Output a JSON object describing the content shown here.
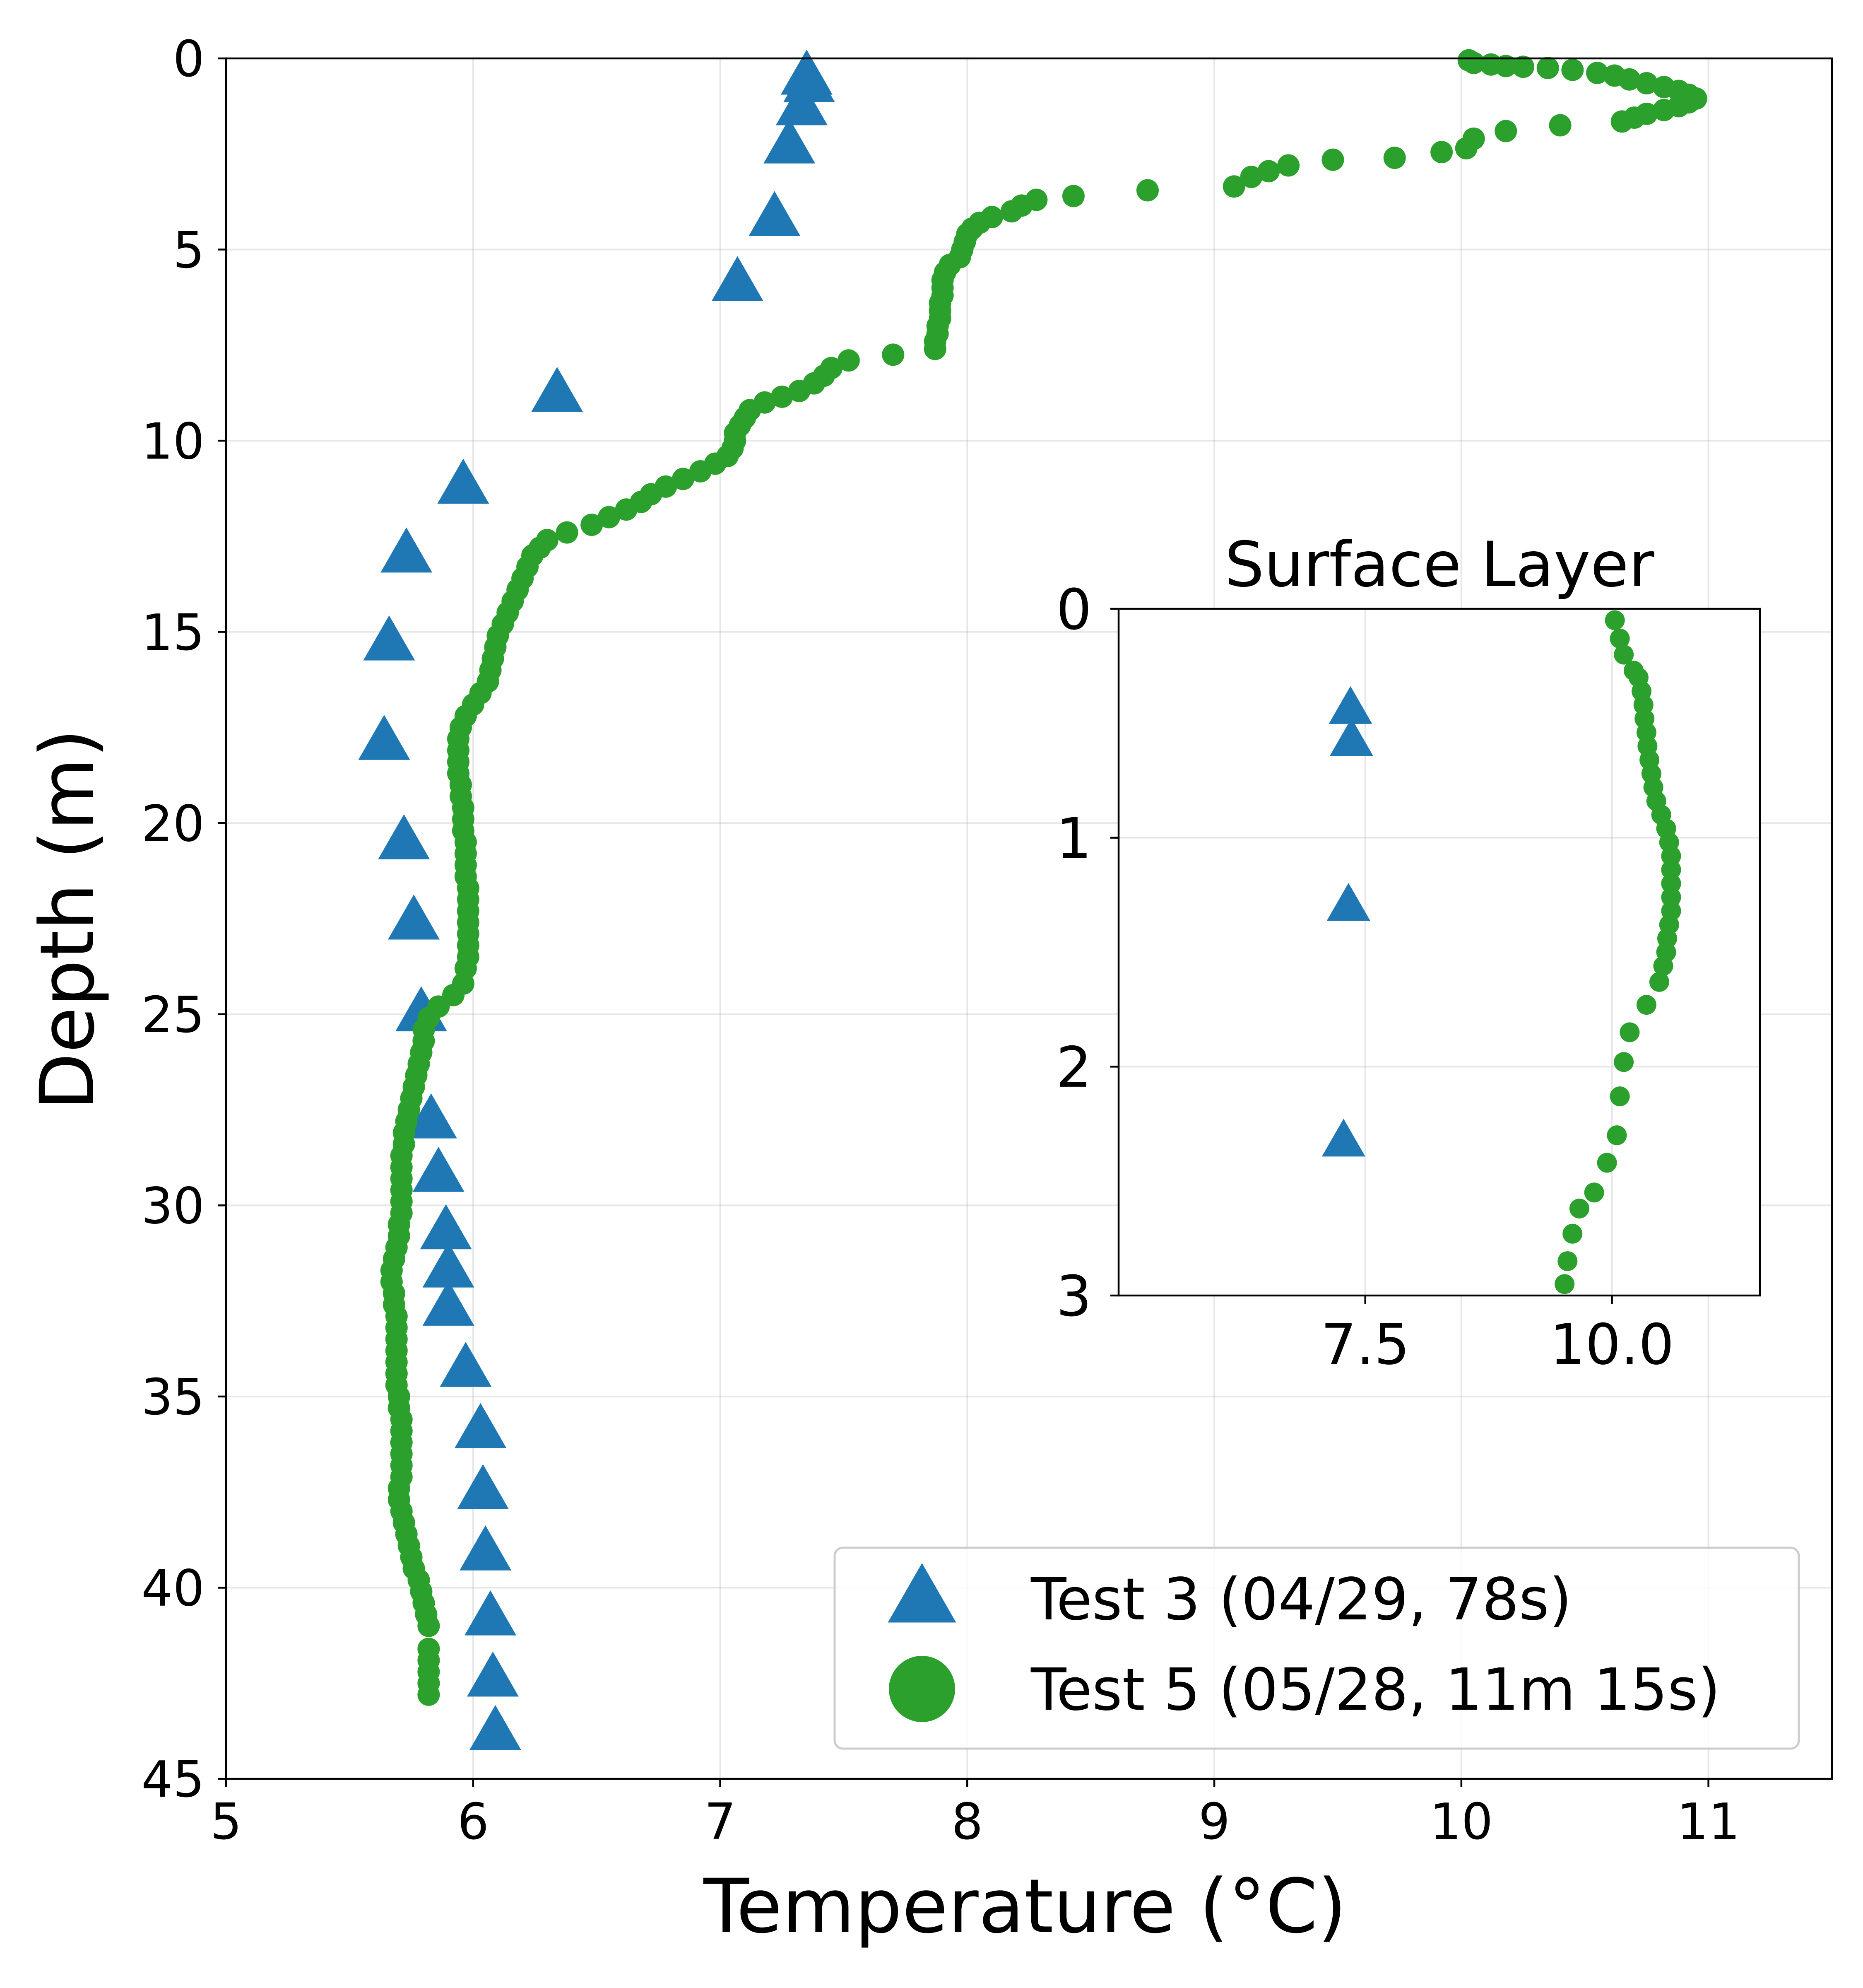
{
  "chart_data": [
    {
      "type": "scatter",
      "title": "",
      "xlabel": "Temperature (°C)",
      "ylabel": "Depth (m)",
      "xlim": [
        5,
        11.5
      ],
      "ylim": [
        45,
        0
      ],
      "y_inverted": true,
      "grid": true,
      "xticks": [
        "5",
        "6",
        "7",
        "8",
        "9",
        "10",
        "11"
      ],
      "yticks": [
        "0",
        "5",
        "10",
        "15",
        "20",
        "25",
        "30",
        "35",
        "40",
        "45"
      ],
      "legend": {
        "position": "lower-right",
        "entries": [
          {
            "label": "Test 3 (04/29, 78s)",
            "marker": "triangle",
            "color": "#1f77b4"
          },
          {
            "label": "Test 5 (05/28, 11m 15s)",
            "marker": "circle",
            "color": "#2ca02c"
          }
        ]
      },
      "series": [
        {
          "name": "Test 3 (04/29, 78s)",
          "marker": "triangle",
          "color": "#1f77b4",
          "points": [
            [
              7.35,
              0.5
            ],
            [
              7.36,
              0.7
            ],
            [
              7.33,
              1.3
            ],
            [
              7.28,
              2.3
            ],
            [
              7.22,
              4.2
            ],
            [
              7.07,
              5.9
            ],
            [
              6.34,
              8.8
            ],
            [
              5.96,
              11.2
            ],
            [
              5.73,
              13.0
            ],
            [
              5.66,
              15.3
            ],
            [
              5.64,
              17.9
            ],
            [
              5.72,
              20.5
            ],
            [
              5.76,
              22.6
            ],
            [
              5.79,
              25.0
            ],
            [
              5.83,
              27.8
            ],
            [
              5.86,
              29.2
            ],
            [
              5.89,
              30.7
            ],
            [
              5.9,
              31.7
            ],
            [
              5.9,
              32.7
            ],
            [
              5.97,
              34.3
            ],
            [
              6.03,
              35.9
            ],
            [
              6.04,
              37.5
            ],
            [
              6.05,
              39.1
            ],
            [
              6.07,
              40.8
            ],
            [
              6.08,
              42.4
            ],
            [
              6.09,
              43.8
            ]
          ]
        },
        {
          "name": "Test 5 (05/28, 11m 15s)",
          "marker": "circle",
          "color": "#2ca02c",
          "points": [
            [
              10.03,
              0.05
            ],
            [
              10.05,
              0.12
            ],
            [
              10.12,
              0.16
            ],
            [
              10.18,
              0.2
            ],
            [
              10.25,
              0.22
            ],
            [
              10.35,
              0.25
            ],
            [
              10.45,
              0.3
            ],
            [
              10.55,
              0.38
            ],
            [
              10.62,
              0.45
            ],
            [
              10.68,
              0.55
            ],
            [
              10.75,
              0.65
            ],
            [
              10.82,
              0.75
            ],
            [
              10.88,
              0.85
            ],
            [
              10.92,
              0.95
            ],
            [
              10.95,
              1.05
            ],
            [
              10.92,
              1.15
            ],
            [
              10.88,
              1.25
            ],
            [
              10.82,
              1.35
            ],
            [
              10.75,
              1.45
            ],
            [
              10.7,
              1.55
            ],
            [
              10.65,
              1.65
            ],
            [
              10.4,
              1.75
            ],
            [
              10.18,
              1.9
            ],
            [
              10.05,
              2.1
            ],
            [
              10.02,
              2.35
            ],
            [
              9.92,
              2.45
            ],
            [
              9.73,
              2.6
            ],
            [
              9.48,
              2.65
            ],
            [
              9.3,
              2.8
            ],
            [
              9.22,
              2.95
            ],
            [
              9.15,
              3.1
            ],
            [
              9.08,
              3.35
            ],
            [
              8.73,
              3.45
            ],
            [
              8.43,
              3.6
            ],
            [
              8.28,
              3.7
            ],
            [
              8.22,
              3.85
            ],
            [
              8.18,
              4.0
            ],
            [
              8.1,
              4.15
            ],
            [
              8.05,
              4.3
            ],
            [
              8.02,
              4.45
            ],
            [
              8.0,
              4.6
            ],
            [
              7.99,
              4.8
            ],
            [
              7.98,
              5.0
            ],
            [
              7.97,
              5.2
            ],
            [
              7.93,
              5.4
            ],
            [
              7.91,
              5.6
            ],
            [
              7.9,
              5.8
            ],
            [
              7.9,
              6.0
            ],
            [
              7.9,
              6.2
            ],
            [
              7.89,
              6.4
            ],
            [
              7.89,
              6.6
            ],
            [
              7.89,
              6.8
            ],
            [
              7.88,
              7.0
            ],
            [
              7.88,
              7.2
            ],
            [
              7.87,
              7.4
            ],
            [
              7.87,
              7.6
            ],
            [
              7.7,
              7.75
            ],
            [
              7.52,
              7.9
            ],
            [
              7.45,
              8.1
            ],
            [
              7.42,
              8.3
            ],
            [
              7.38,
              8.5
            ],
            [
              7.32,
              8.7
            ],
            [
              7.25,
              8.85
            ],
            [
              7.18,
              9.0
            ],
            [
              7.12,
              9.2
            ],
            [
              7.1,
              9.4
            ],
            [
              7.08,
              9.6
            ],
            [
              7.06,
              9.8
            ],
            [
              7.06,
              10.0
            ],
            [
              7.05,
              10.2
            ],
            [
              7.03,
              10.4
            ],
            [
              6.98,
              10.6
            ],
            [
              6.92,
              10.8
            ],
            [
              6.85,
              11.0
            ],
            [
              6.78,
              11.2
            ],
            [
              6.72,
              11.4
            ],
            [
              6.68,
              11.6
            ],
            [
              6.62,
              11.8
            ],
            [
              6.55,
              12.0
            ],
            [
              6.48,
              12.2
            ],
            [
              6.38,
              12.4
            ],
            [
              6.3,
              12.6
            ],
            [
              6.27,
              12.8
            ],
            [
              6.24,
              13.0
            ],
            [
              6.22,
              13.3
            ],
            [
              6.2,
              13.6
            ],
            [
              6.18,
              13.9
            ],
            [
              6.16,
              14.2
            ],
            [
              6.14,
              14.5
            ],
            [
              6.12,
              14.8
            ],
            [
              6.1,
              15.1
            ],
            [
              6.09,
              15.4
            ],
            [
              6.08,
              15.7
            ],
            [
              6.07,
              16.0
            ],
            [
              6.06,
              16.3
            ],
            [
              6.03,
              16.6
            ],
            [
              6.0,
              16.9
            ],
            [
              5.97,
              17.2
            ],
            [
              5.95,
              17.5
            ],
            [
              5.94,
              17.8
            ],
            [
              5.94,
              18.1
            ],
            [
              5.94,
              18.4
            ],
            [
              5.94,
              18.7
            ],
            [
              5.95,
              19.0
            ],
            [
              5.95,
              19.3
            ],
            [
              5.96,
              19.6
            ],
            [
              5.96,
              19.9
            ],
            [
              5.96,
              20.2
            ],
            [
              5.97,
              20.5
            ],
            [
              5.97,
              20.8
            ],
            [
              5.97,
              21.1
            ],
            [
              5.97,
              21.4
            ],
            [
              5.98,
              21.7
            ],
            [
              5.98,
              22.0
            ],
            [
              5.98,
              22.3
            ],
            [
              5.98,
              22.6
            ],
            [
              5.98,
              22.9
            ],
            [
              5.98,
              23.2
            ],
            [
              5.98,
              23.5
            ],
            [
              5.97,
              23.8
            ],
            [
              5.96,
              24.2
            ],
            [
              5.92,
              24.5
            ],
            [
              5.86,
              24.8
            ],
            [
              5.82,
              25.1
            ],
            [
              5.8,
              25.4
            ],
            [
              5.8,
              25.7
            ],
            [
              5.79,
              26.0
            ],
            [
              5.78,
              26.3
            ],
            [
              5.77,
              26.6
            ],
            [
              5.76,
              26.9
            ],
            [
              5.75,
              27.2
            ],
            [
              5.74,
              27.5
            ],
            [
              5.73,
              27.8
            ],
            [
              5.72,
              28.1
            ],
            [
              5.72,
              28.4
            ],
            [
              5.71,
              28.7
            ],
            [
              5.71,
              29.0
            ],
            [
              5.71,
              29.3
            ],
            [
              5.71,
              29.6
            ],
            [
              5.71,
              29.9
            ],
            [
              5.71,
              30.2
            ],
            [
              5.7,
              30.5
            ],
            [
              5.7,
              30.8
            ],
            [
              5.69,
              31.1
            ],
            [
              5.68,
              31.4
            ],
            [
              5.67,
              31.7
            ],
            [
              5.67,
              32.0
            ],
            [
              5.68,
              32.3
            ],
            [
              5.68,
              32.6
            ],
            [
              5.69,
              32.9
            ],
            [
              5.69,
              33.2
            ],
            [
              5.69,
              33.5
            ],
            [
              5.69,
              33.8
            ],
            [
              5.69,
              34.1
            ],
            [
              5.69,
              34.4
            ],
            [
              5.69,
              34.7
            ],
            [
              5.7,
              35.0
            ],
            [
              5.7,
              35.3
            ],
            [
              5.71,
              35.6
            ],
            [
              5.71,
              35.9
            ],
            [
              5.71,
              36.2
            ],
            [
              5.71,
              36.5
            ],
            [
              5.71,
              36.8
            ],
            [
              5.71,
              37.1
            ],
            [
              5.7,
              37.4
            ],
            [
              5.7,
              37.7
            ],
            [
              5.71,
              38.0
            ],
            [
              5.72,
              38.3
            ],
            [
              5.73,
              38.6
            ],
            [
              5.74,
              38.9
            ],
            [
              5.75,
              39.2
            ],
            [
              5.76,
              39.5
            ],
            [
              5.78,
              39.8
            ],
            [
              5.79,
              40.1
            ],
            [
              5.8,
              40.4
            ],
            [
              5.81,
              40.7
            ],
            [
              5.82,
              41.0
            ],
            [
              5.82,
              41.6
            ],
            [
              5.82,
              41.9
            ],
            [
              5.82,
              42.2
            ],
            [
              5.82,
              42.5
            ],
            [
              5.82,
              42.8
            ]
          ]
        }
      ]
    },
    {
      "type": "scatter",
      "title": "Surface Layer",
      "xlabel": "",
      "ylabel": "",
      "xlim": [
        5,
        11.5
      ],
      "ylim": [
        3,
        0
      ],
      "y_inverted": true,
      "grid": true,
      "xticks": [
        "7.5",
        "10.0"
      ],
      "yticks": [
        "0",
        "1",
        "2",
        "3"
      ],
      "series": [
        {
          "name": "Test 3 (04/29, 78s)",
          "marker": "triangle",
          "color": "#1f77b4",
          "points": [
            [
              7.35,
              0.44
            ],
            [
              7.36,
              0.58
            ],
            [
              7.33,
              1.3
            ],
            [
              7.28,
              2.33
            ]
          ]
        },
        {
          "name": "Test 5 (05/28, 11m 15s)",
          "marker": "circle",
          "color": "#2ca02c",
          "points": [
            [
              10.03,
              0.05
            ],
            [
              10.08,
              0.13
            ],
            [
              10.12,
              0.2
            ],
            [
              10.22,
              0.27
            ],
            [
              10.27,
              0.3
            ],
            [
              10.3,
              0.36
            ],
            [
              10.32,
              0.42
            ],
            [
              10.33,
              0.48
            ],
            [
              10.35,
              0.54
            ],
            [
              10.36,
              0.6
            ],
            [
              10.38,
              0.66
            ],
            [
              10.4,
              0.72
            ],
            [
              10.42,
              0.78
            ],
            [
              10.45,
              0.84
            ],
            [
              10.5,
              0.9
            ],
            [
              10.55,
              0.96
            ],
            [
              10.58,
              1.02
            ],
            [
              10.6,
              1.08
            ],
            [
              10.6,
              1.14
            ],
            [
              10.6,
              1.2
            ],
            [
              10.6,
              1.26
            ],
            [
              10.6,
              1.32
            ],
            [
              10.58,
              1.38
            ],
            [
              10.56,
              1.44
            ],
            [
              10.55,
              1.5
            ],
            [
              10.52,
              1.56
            ],
            [
              10.48,
              1.63
            ],
            [
              10.35,
              1.73
            ],
            [
              10.18,
              1.85
            ],
            [
              10.12,
              1.98
            ],
            [
              10.08,
              2.13
            ],
            [
              10.05,
              2.3
            ],
            [
              9.95,
              2.42
            ],
            [
              9.82,
              2.55
            ],
            [
              9.67,
              2.62
            ],
            [
              9.6,
              2.73
            ],
            [
              9.55,
              2.85
            ],
            [
              9.52,
              2.95
            ]
          ]
        }
      ]
    }
  ]
}
